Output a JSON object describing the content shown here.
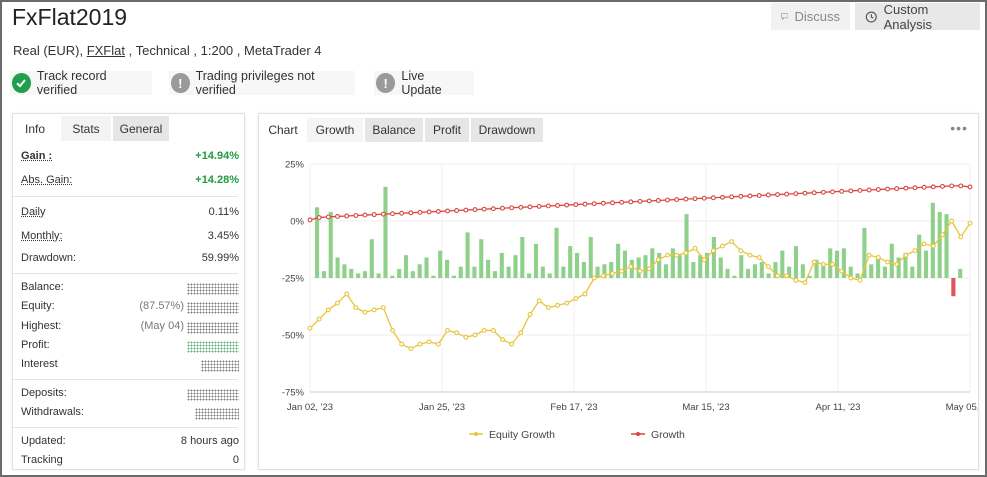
{
  "header": {
    "title": "FxFlat2019",
    "subtitle_pre": "Real (EUR), ",
    "subtitle_link": "FXFlat",
    "subtitle_post": " , Technical , 1:200 , MetaTrader 4",
    "discuss_label": "Discuss",
    "custom_analysis_label": "Custom Analysis"
  },
  "badges": [
    {
      "label": "Track record verified",
      "icon": "check-icon"
    },
    {
      "label": "Trading privileges not verified",
      "icon": "exclamation-icon"
    },
    {
      "label": "Live Update",
      "icon": "exclamation-icon"
    }
  ],
  "left_tabs": {
    "info": "Info",
    "stats": "Stats",
    "general": "General"
  },
  "stats": {
    "gain_label": "Gain :",
    "gain": "+14.94%",
    "abs_gain_label": "Abs. Gain:",
    "abs_gain": "+14.28%",
    "daily_label": "Daily",
    "daily": "0.11%",
    "monthly_label": "Monthly:",
    "monthly": "3.45%",
    "drawdown_label": "Drawdown:",
    "drawdown": "59.99%",
    "balance_label": "Balance:",
    "equity_label": "Equity:",
    "equity_note": "(87.57%)",
    "highest_label": "Highest:",
    "highest_note": "(May 04)",
    "profit_label": "Profit:",
    "interest_label": "Interest",
    "deposits_label": "Deposits:",
    "withdrawals_label": "Withdrawals:",
    "updated_label": "Updated:",
    "updated": "8 hours ago",
    "tracking_label": "Tracking",
    "tracking": "0"
  },
  "chart_tabs": {
    "chart": "Chart",
    "growth": "Growth",
    "balance": "Balance",
    "profit": "Profit",
    "drawdown": "Drawdown"
  },
  "chart_data": {
    "type": "line",
    "y_ticks": [
      "25%",
      "0%",
      "-25%",
      "-50%",
      "-75%"
    ],
    "ylim": [
      -75,
      25
    ],
    "x_ticks": [
      "Jan 02, '23",
      "Jan 25, '23",
      "Feb 17, '23",
      "Mar 15, '23",
      "Apr 11, '23",
      "May 05, '23"
    ],
    "grid": true,
    "legend_position": "bottom",
    "colors": {
      "equity": "#e8c53a",
      "growth": "#d9463f",
      "bars_pos": "#8fd08a",
      "bars_neg": "#e05555"
    },
    "series": [
      {
        "name": "Equity Growth",
        "values": [
          -47,
          -43,
          -39,
          -36,
          -32,
          -38,
          -40,
          -39,
          -38,
          -48,
          -54,
          -56,
          -54,
          -53,
          -54,
          -48,
          -49,
          -51,
          -50,
          -48,
          -48,
          -52,
          -54,
          -49,
          -41,
          -35,
          -38,
          -37,
          -36,
          -34,
          -32,
          -25,
          -24,
          -23,
          -22,
          -20,
          -22,
          -21,
          -17,
          -15,
          -15,
          -14,
          -12,
          -17,
          -13,
          -11,
          -9,
          -13,
          -15,
          -16,
          -20,
          -24,
          -24,
          -26,
          -27,
          -18,
          -19,
          -19,
          -22,
          -25,
          -26,
          -15,
          -16,
          -18,
          -19,
          -15,
          -13,
          -10,
          -11,
          -6,
          0,
          -7,
          -1
        ]
      },
      {
        "name": "Growth",
        "values": [
          0.5,
          1.5,
          1.8,
          2.0,
          2.2,
          2.4,
          2.6,
          2.8,
          3.0,
          3.2,
          3.4,
          3.6,
          3.8,
          4.0,
          4.2,
          4.4,
          4.6,
          4.8,
          5.0,
          5.2,
          5.4,
          5.6,
          5.8,
          6.0,
          6.2,
          6.4,
          6.6,
          6.8,
          7.0,
          7.2,
          7.4,
          7.6,
          7.8,
          8.0,
          8.2,
          8.4,
          8.6,
          8.8,
          9.0,
          9.2,
          9.4,
          9.6,
          9.8,
          10.0,
          10.2,
          10.4,
          10.6,
          10.8,
          11.0,
          11.2,
          11.4,
          11.6,
          11.8,
          12.0,
          12.2,
          12.4,
          12.6,
          12.8,
          13.0,
          13.2,
          13.4,
          13.6,
          13.8,
          14.0,
          14.2,
          14.4,
          14.6,
          14.8,
          15.0,
          15.2,
          15.4,
          15.4,
          14.94
        ]
      }
    ],
    "bars": [
      6,
      -22,
      4,
      -16,
      -19,
      -21,
      -23,
      -22,
      -8,
      -23,
      15,
      -24,
      -21,
      -15,
      -22,
      -19,
      -16,
      -24,
      -13,
      -17,
      -24,
      -20,
      -5,
      -20,
      -8,
      -17,
      -22,
      -14,
      -20,
      -15,
      -7,
      -23,
      -10,
      -20,
      -23,
      -3,
      -20,
      -11,
      -14,
      -18,
      -7,
      -20,
      -19,
      -18,
      -10,
      -13,
      -17,
      -16,
      -15,
      -12,
      -14,
      -19,
      -12,
      -15,
      3,
      -18,
      -15,
      -14,
      -7,
      -16,
      -21,
      -24,
      -15,
      -21,
      -19,
      -18,
      -23,
      -18,
      -13,
      -20,
      -11,
      -19,
      -24,
      -17,
      -19,
      -12,
      -13,
      -12,
      -20,
      -23,
      -3,
      -19,
      -16,
      -20,
      -10,
      -16,
      -14,
      -20,
      -6,
      -13,
      8,
      4,
      3,
      -33,
      -21
    ]
  }
}
